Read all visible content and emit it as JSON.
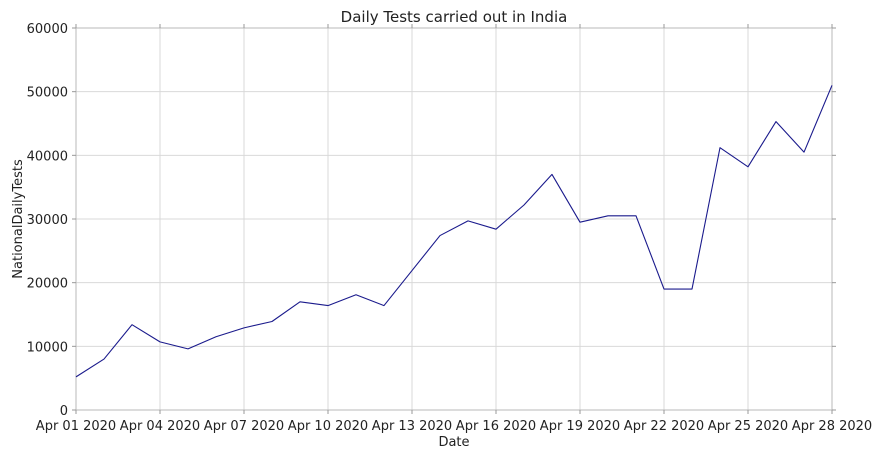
{
  "chart_data": {
    "type": "line",
    "title": "Daily Tests carried out in India",
    "xlabel": "Date",
    "ylabel": "NationalDailyTests",
    "ylim": [
      0,
      60000
    ],
    "yticks": [
      0,
      10000,
      20000,
      30000,
      40000,
      50000,
      60000
    ],
    "xticks": [
      "Apr 01 2020",
      "Apr 04 2020",
      "Apr 07 2020",
      "Apr 10 2020",
      "Apr 13 2020",
      "Apr 16 2020",
      "Apr 19 2020",
      "Apr 22 2020",
      "Apr 25 2020",
      "Apr 28 2020"
    ],
    "grid": true,
    "series": [
      {
        "color": "#1a1a8c",
        "x": [
          "Apr 01 2020",
          "Apr 02 2020",
          "Apr 03 2020",
          "Apr 04 2020",
          "Apr 05 2020",
          "Apr 06 2020",
          "Apr 07 2020",
          "Apr 08 2020",
          "Apr 09 2020",
          "Apr 10 2020",
          "Apr 11 2020",
          "Apr 12 2020",
          "Apr 13 2020",
          "Apr 14 2020",
          "Apr 15 2020",
          "Apr 16 2020",
          "Apr 17 2020",
          "Apr 18 2020",
          "Apr 19 2020",
          "Apr 20 2020",
          "Apr 21 2020",
          "Apr 22 2020",
          "Apr 23 2020",
          "Apr 24 2020",
          "Apr 25 2020",
          "Apr 26 2020",
          "Apr 27 2020",
          "Apr 28 2020"
        ],
        "values": [
          5200,
          8000,
          13400,
          10700,
          9600,
          11500,
          12900,
          13900,
          17000,
          16400,
          18100,
          16400,
          21900,
          27400,
          29700,
          28400,
          32200,
          37000,
          29500,
          30500,
          30500,
          19000,
          19000,
          41200,
          38200,
          45300,
          40500,
          51000
        ]
      }
    ]
  }
}
